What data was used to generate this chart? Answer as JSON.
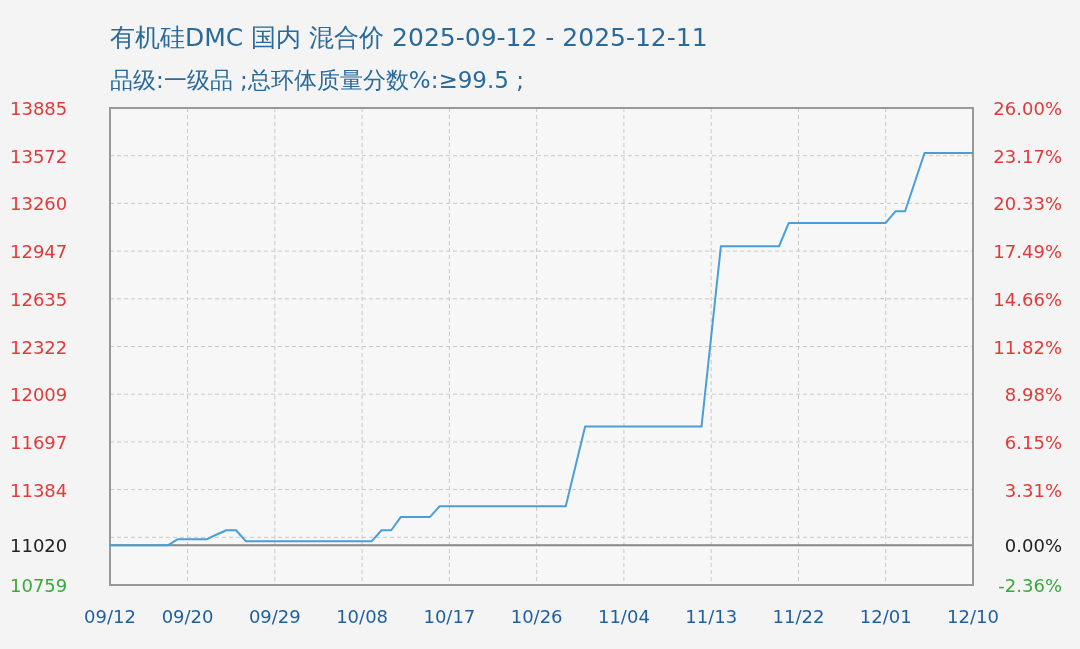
{
  "chart_data": {
    "type": "line",
    "title": "有机硅DMC 国内 混合价 2025-09-12 - 2025-12-11",
    "subtitle": "品级:一级品 ;总环体质量分数%:≥99.5 ;",
    "x": [
      "2025-09-12",
      "2025-09-18",
      "2025-09-19",
      "2025-09-22",
      "2025-09-23",
      "2025-09-24",
      "2025-09-25",
      "2025-09-26",
      "2025-10-09",
      "2025-10-10",
      "2025-10-11",
      "2025-10-12",
      "2025-10-15",
      "2025-10-16",
      "2025-10-29",
      "2025-10-31",
      "2025-11-12",
      "2025-11-14",
      "2025-11-20",
      "2025-11-21",
      "2025-12-01",
      "2025-12-02",
      "2025-12-03",
      "2025-12-05",
      "2025-12-10"
    ],
    "series": [
      {
        "color": "#4a9fd8",
        "values": [
          11020,
          11020,
          11059,
          11059,
          11090,
          11118,
          11118,
          11046,
          11046,
          11118,
          11118,
          11205,
          11205,
          11275,
          11275,
          11797,
          11797,
          12979,
          12979,
          13132,
          13132,
          13208,
          13208,
          13590,
          13590
        ]
      }
    ],
    "xlim": [
      "2025-09-12",
      "2025-12-10"
    ],
    "xticks": [
      {
        "value": "2025-09-12",
        "label": "09/12"
      },
      {
        "value": "2025-09-20",
        "label": "09/20"
      },
      {
        "value": "2025-09-29",
        "label": "09/29"
      },
      {
        "value": "2025-10-08",
        "label": "10/08"
      },
      {
        "value": "2025-10-17",
        "label": "10/17"
      },
      {
        "value": "2025-10-26",
        "label": "10/26"
      },
      {
        "value": "2025-11-04",
        "label": "11/04"
      },
      {
        "value": "2025-11-13",
        "label": "11/13"
      },
      {
        "value": "2025-11-22",
        "label": "11/22"
      },
      {
        "value": "2025-12-01",
        "label": "12/01"
      },
      {
        "value": "2025-12-10",
        "label": "12/10"
      }
    ],
    "ylim": [
      10759,
      13885
    ],
    "yticks": [
      10759,
      11020,
      {
        "value": 11071.6,
        "label": null
      },
      {
        "value": 11384.2,
        "label": "11384"
      },
      {
        "value": 11696.8,
        "label": "11697"
      },
      {
        "value": 12009.4,
        "label": "12009"
      },
      12322,
      {
        "value": 12634.6,
        "label": "12635"
      },
      {
        "value": 12947.2,
        "label": "12947"
      },
      {
        "value": 13259.8,
        "label": "13260"
      },
      {
        "value": 13572.4,
        "label": "13572"
      },
      13885
    ],
    "y2lim": [
      -2.36,
      26.0
    ],
    "y2ticks": [
      {
        "value": -2.36,
        "label": "-2.36%"
      },
      {
        "value": 0,
        "label": "0.00%"
      },
      {
        "value": 3.31,
        "label": "3.31%"
      },
      {
        "value": 6.15,
        "label": "6.15%"
      },
      {
        "value": 8.98,
        "label": "8.98%"
      },
      {
        "value": 11.82,
        "label": "11.82%"
      },
      {
        "value": 14.66,
        "label": "14.66%"
      },
      {
        "value": 17.49,
        "label": "17.49%"
      },
      {
        "value": 20.33,
        "label": "20.33%"
      },
      {
        "value": 23.17,
        "label": "23.17%"
      },
      {
        "value": 26.0,
        "label": "26.00%"
      }
    ],
    "ref_lines": [
      {
        "axis": "y",
        "value": 11020,
        "color": "#888888",
        "line_style": "solid"
      }
    ],
    "grid": true,
    "marker": "none",
    "line_style": "solid"
  }
}
